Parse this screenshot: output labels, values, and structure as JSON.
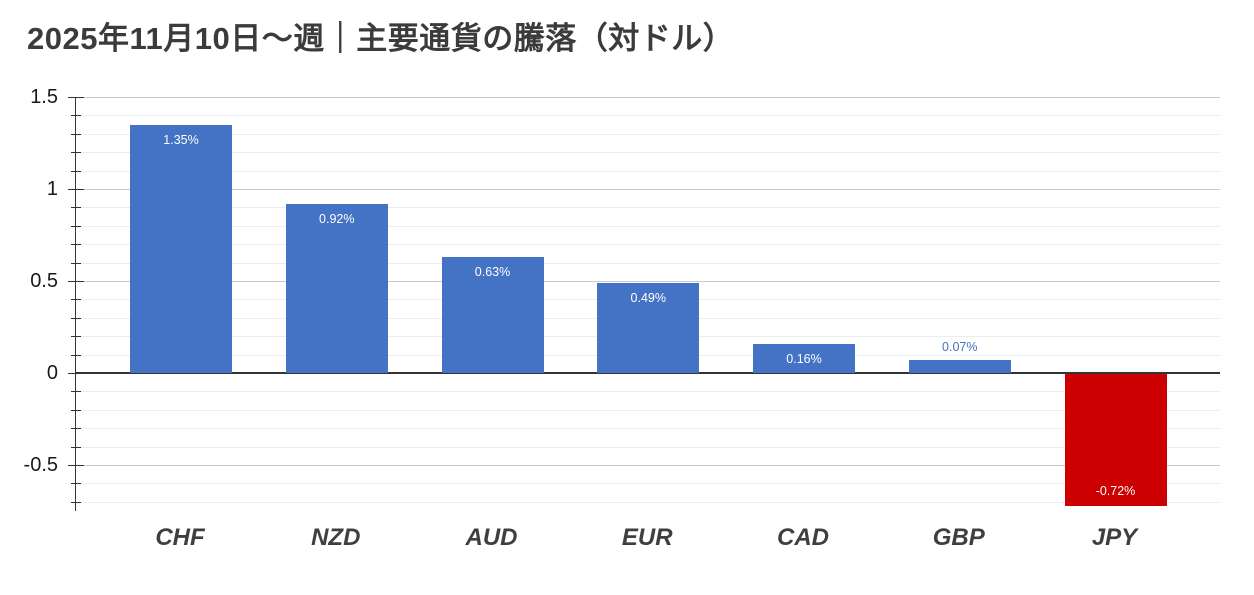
{
  "title": "2025年11月10日～週｜主要通貨の騰落（対ドル）",
  "colors": {
    "positive_bar": "#4472C4",
    "negative_bar": "#CC0000",
    "inside_label": "#ffffff",
    "title_text": "#3b3b3b",
    "axis_text": "#1a1a1a",
    "category_text": "#3f3f3f",
    "zero_line": "#333333",
    "major_grid": "#c9c9c9",
    "minor_grid": "#ececec"
  },
  "chart_data": {
    "type": "bar",
    "title": "2025年11月10日～週｜主要通貨の騰落（対ドル）",
    "categories": [
      "CHF",
      "NZD",
      "AUD",
      "EUR",
      "CAD",
      "GBP",
      "JPY"
    ],
    "values": [
      1.35,
      0.92,
      0.63,
      0.49,
      0.16,
      0.07,
      -0.72
    ],
    "value_labels": [
      "1.35%",
      "0.92%",
      "0.63%",
      "0.49%",
      "0.16%",
      "0.07%",
      "-0.72%"
    ],
    "bar_colors": [
      "#4472C4",
      "#4472C4",
      "#4472C4",
      "#4472C4",
      "#4472C4",
      "#4472C4",
      "#CC0000"
    ],
    "xlabel": "",
    "ylabel": "",
    "ylim": [
      -0.75,
      1.5
    ],
    "y_major_ticks": [
      1.5,
      1,
      0.5,
      0,
      -0.5
    ],
    "y_major_tick_labels": [
      "1.5",
      "1",
      "0.5",
      "0",
      "-0.5"
    ],
    "y_minor_interval": 0.1,
    "grid": true,
    "legend": "none"
  }
}
